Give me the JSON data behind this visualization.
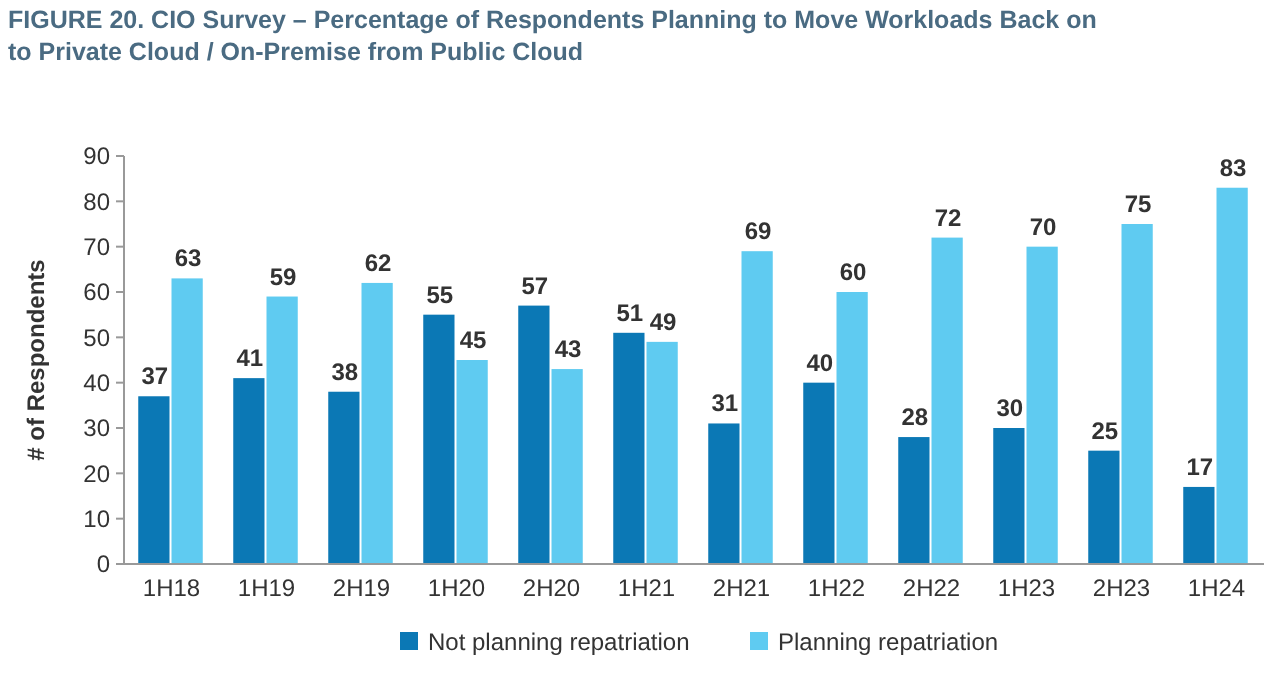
{
  "chart_data": {
    "type": "bar",
    "title": "FIGURE 20. CIO Survey – Percentage of Respondents Planning to Move Workloads Back on to Private Cloud / On-Premise from Public Cloud",
    "ylabel": "# of Respondents",
    "categories": [
      "1H18",
      "1H19",
      "2H19",
      "1H20",
      "2H20",
      "1H21",
      "2H21",
      "1H22",
      "2H22",
      "1H23",
      "2H23",
      "1H24"
    ],
    "series": [
      {
        "name": "Not planning repatriation",
        "color": "#0b78b5",
        "values": [
          37,
          41,
          38,
          55,
          57,
          51,
          31,
          40,
          28,
          30,
          25,
          17
        ]
      },
      {
        "name": "Planning repatriation",
        "color": "#5fcbf1",
        "values": [
          63,
          59,
          62,
          45,
          43,
          49,
          69,
          60,
          72,
          70,
          75,
          83
        ]
      }
    ],
    "ylim": [
      0,
      90
    ],
    "yticks": [
      0,
      10,
      20,
      30,
      40,
      50,
      60,
      70,
      80,
      90
    ],
    "data_labels": true,
    "legend": "bottom",
    "grid": false
  }
}
